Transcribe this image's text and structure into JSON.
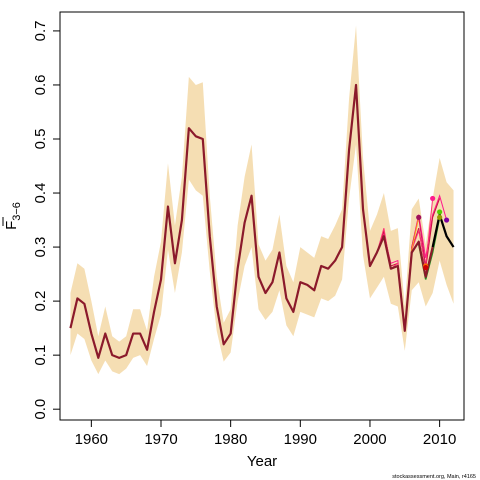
{
  "chart_data": {
    "type": "line",
    "xlabel": "Year",
    "ylabel": {
      "main": "F",
      "sub": "3−6"
    },
    "xlim": [
      1955.5,
      2013.5
    ],
    "ylim": [
      -0.02,
      0.735
    ],
    "xticks": [
      "1960",
      "1970",
      "1980",
      "1990",
      "2000",
      "2010"
    ],
    "yticks": [
      "0.0",
      "0.1",
      "0.2",
      "0.3",
      "0.4",
      "0.5",
      "0.6",
      "0.7"
    ],
    "credit": "stockassessment.org, Main, r4165",
    "colors": {
      "band": "#f5deb3",
      "main_line": "#8b1a2b",
      "retro_lines": [
        "#ff1a8c",
        "#c8103c",
        "#ff3377",
        "#d4145a",
        "#ffa020"
      ],
      "final_line": "#000000"
    },
    "x": [
      1957,
      1958,
      1959,
      1960,
      1961,
      1962,
      1963,
      1964,
      1965,
      1966,
      1967,
      1968,
      1969,
      1970,
      1971,
      1972,
      1973,
      1974,
      1975,
      1976,
      1977,
      1978,
      1979,
      1980,
      1981,
      1982,
      1983,
      1984,
      1985,
      1986,
      1987,
      1988,
      1989,
      1990,
      1991,
      1992,
      1993,
      1994,
      1995,
      1996,
      1997,
      1998,
      1999,
      2000,
      2001,
      2002,
      2003,
      2004,
      2005,
      2006,
      2007,
      2008,
      2009,
      2010,
      2011,
      2012
    ],
    "series": [
      {
        "values": [
          0.15,
          0.205,
          0.195,
          0.14,
          0.095,
          0.14,
          0.1,
          0.095,
          0.1,
          0.14,
          0.14,
          0.11,
          0.18,
          0.24,
          0.375,
          0.27,
          0.35,
          0.52,
          0.505,
          0.5,
          0.32,
          0.19,
          0.12,
          0.14,
          0.26,
          0.345,
          0.395,
          0.245,
          0.215,
          0.235,
          0.29,
          0.205,
          0.18,
          0.235,
          0.23,
          0.22,
          0.265,
          0.26,
          0.275,
          0.3,
          0.48,
          0.6,
          0.37,
          0.265,
          0.29,
          0.32,
          0.26,
          0.265,
          0.145,
          0.29,
          0.31,
          0.245,
          0.3,
          0.36,
          0.32,
          0.3
        ]
      }
    ],
    "band": {
      "lower": [
        0.1,
        0.14,
        0.13,
        0.09,
        0.065,
        0.09,
        0.07,
        0.065,
        0.075,
        0.095,
        0.1,
        0.08,
        0.13,
        0.175,
        0.295,
        0.215,
        0.29,
        0.425,
        0.405,
        0.395,
        0.255,
        0.145,
        0.088,
        0.105,
        0.2,
        0.265,
        0.3,
        0.185,
        0.165,
        0.18,
        0.22,
        0.155,
        0.135,
        0.18,
        0.175,
        0.17,
        0.205,
        0.2,
        0.21,
        0.24,
        0.39,
        0.49,
        0.285,
        0.205,
        0.225,
        0.245,
        0.195,
        0.19,
        0.108,
        0.22,
        0.235,
        0.19,
        0.215,
        0.275,
        0.23,
        0.195
      ],
      "upper": [
        0.215,
        0.27,
        0.26,
        0.2,
        0.135,
        0.19,
        0.135,
        0.125,
        0.135,
        0.185,
        0.185,
        0.145,
        0.245,
        0.31,
        0.455,
        0.34,
        0.43,
        0.615,
        0.6,
        0.605,
        0.395,
        0.245,
        0.16,
        0.185,
        0.34,
        0.43,
        0.49,
        0.305,
        0.275,
        0.295,
        0.36,
        0.265,
        0.235,
        0.3,
        0.29,
        0.28,
        0.32,
        0.315,
        0.34,
        0.37,
        0.575,
        0.71,
        0.465,
        0.33,
        0.36,
        0.4,
        0.33,
        0.335,
        0.19,
        0.37,
        0.39,
        0.305,
        0.39,
        0.465,
        0.42,
        0.405
      ]
    },
    "retrospective": [
      {
        "x": [
          2001,
          2002,
          2003,
          2004,
          2005,
          2006,
          2007,
          2008,
          2009,
          2010,
          2011
        ],
        "values": [
          0.29,
          0.325,
          0.27,
          0.275,
          0.145,
          0.3,
          0.36,
          0.28,
          0.36,
          0.395,
          0.35
        ],
        "end": [
          2011,
          0.35
        ]
      },
      {
        "x": [
          2001,
          2002,
          2003,
          2004,
          2005,
          2006,
          2007,
          2008,
          2009,
          2010
        ],
        "values": [
          0.29,
          0.33,
          0.265,
          0.27,
          0.145,
          0.295,
          0.335,
          0.26,
          0.355,
          0.39
        ],
        "end": [
          2010,
          0.39
        ]
      },
      {
        "x": [
          2001,
          2002,
          2003,
          2004,
          2005,
          2006,
          2007,
          2008,
          2009
        ],
        "values": [
          0.29,
          0.335,
          0.26,
          0.27,
          0.145,
          0.295,
          0.33,
          0.265,
          0.39
        ],
        "end": [
          2009,
          0.39
        ]
      },
      {
        "x": [
          2001,
          2002,
          2003,
          2004,
          2005,
          2006,
          2007,
          2008
        ],
        "values": [
          0.29,
          0.32,
          0.26,
          0.265,
          0.145,
          0.3,
          0.355,
          0.265
        ],
        "end": [
          2008,
          0.265
        ]
      },
      {
        "x": [
          2001,
          2002,
          2003,
          2004,
          2005,
          2006,
          2007
        ],
        "values": [
          0.29,
          0.32,
          0.26,
          0.265,
          0.145,
          0.295,
          0.355
        ],
        "end": [
          2007,
          0.355
        ]
      }
    ],
    "endpoint_markers": [
      {
        "x": 2007,
        "y": 0.355,
        "color": "#a0105a"
      },
      {
        "x": 2008,
        "y": 0.265,
        "color": "#ff6a00"
      },
      {
        "x": 2008,
        "y": 0.262,
        "color": "#cc0000"
      },
      {
        "x": 2009,
        "y": 0.39,
        "color": "#ff1a8c"
      },
      {
        "x": 2010,
        "y": 0.365,
        "color": "#55cc00"
      },
      {
        "x": 2010,
        "y": 0.355,
        "color": "#999900"
      },
      {
        "x": 2011,
        "y": 0.35,
        "color": "#8000a0"
      }
    ],
    "green_line": {
      "x": [
        2007,
        2008,
        2009,
        2010
      ],
      "values": [
        0.305,
        0.24,
        0.29,
        0.355
      ],
      "color": "#228b22"
    }
  }
}
